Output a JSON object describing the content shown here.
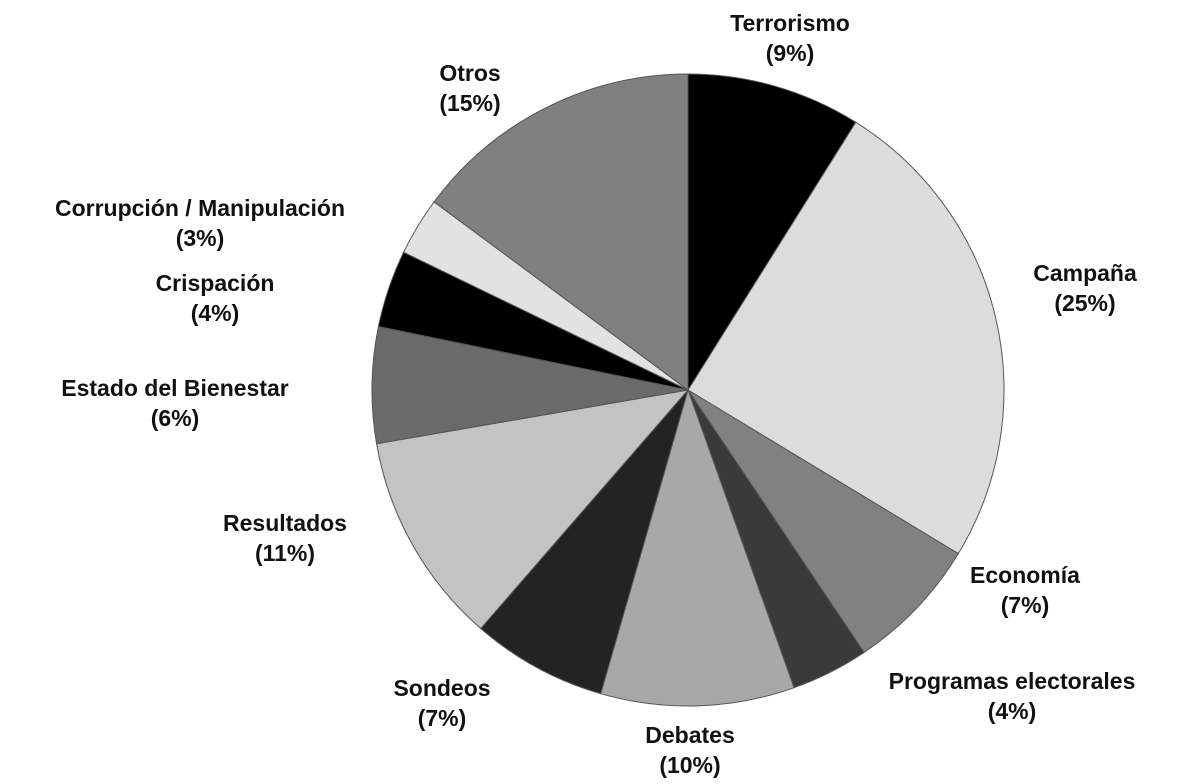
{
  "chart_data": {
    "type": "pie",
    "categories": [
      "Terrorismo",
      "Campaña",
      "Economía",
      "Programas electorales",
      "Debates",
      "Sondeos",
      "Resultados",
      "Estado del Bienestar",
      "Crispación",
      "Corrupción / Manipulación",
      "Otros"
    ],
    "values": [
      9,
      25,
      7,
      4,
      10,
      7,
      11,
      6,
      4,
      3,
      15
    ],
    "value_labels": [
      "(9%)",
      "(25%)",
      "(7%)",
      "(4%)",
      "(10%)",
      "(7%)",
      "(11%)",
      "(6%)",
      "(4%)",
      "(3%)",
      "(15%)"
    ],
    "colors": [
      "#000000",
      "#dcdcdc",
      "#818181",
      "#3a3a3a",
      "#a8a8a8",
      "#232323",
      "#c3c3c3",
      "#6a6a6a",
      "#000000",
      "#e2e2e2",
      "#808080"
    ]
  }
}
